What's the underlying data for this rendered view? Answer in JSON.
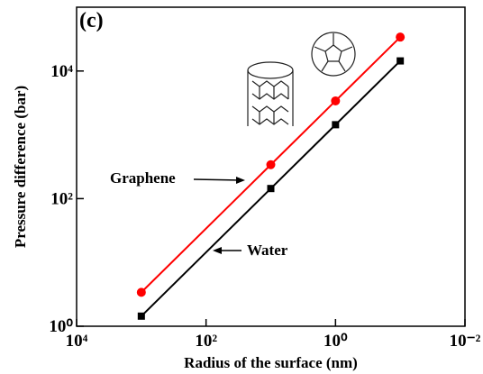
{
  "chart_data": {
    "type": "line",
    "annotations": [
      "(c)",
      "Graphene",
      "Water"
    ],
    "x_label": "Radius of the surface (nm)",
    "y_label": "Pressure difference (bar)",
    "x": [
      1000,
      10,
      1,
      0.1
    ],
    "series": [
      {
        "name": "Graphene",
        "color": "#ff0000",
        "marker": "circle",
        "values": [
          3.4,
          340,
          3400,
          34000
        ]
      },
      {
        "name": "Water",
        "color": "#000000",
        "marker": "square",
        "values": [
          1.44,
          144,
          1440,
          14400
        ]
      }
    ],
    "x_scale": "log",
    "y_scale": "log",
    "xlim": [
      10000,
      0.01
    ],
    "ylim": [
      1,
      100000
    ],
    "xticks": [
      {
        "value": 10000,
        "label": "10⁴"
      },
      {
        "value": 100,
        "label": "10²"
      },
      {
        "value": 1,
        "label": "10⁰"
      },
      {
        "value": 0.01,
        "label": "10⁻²"
      }
    ],
    "yticks": [
      {
        "value": 1,
        "label": "10⁰"
      },
      {
        "value": 100,
        "label": "10²"
      },
      {
        "value": 10000,
        "label": "10⁴"
      }
    ]
  }
}
